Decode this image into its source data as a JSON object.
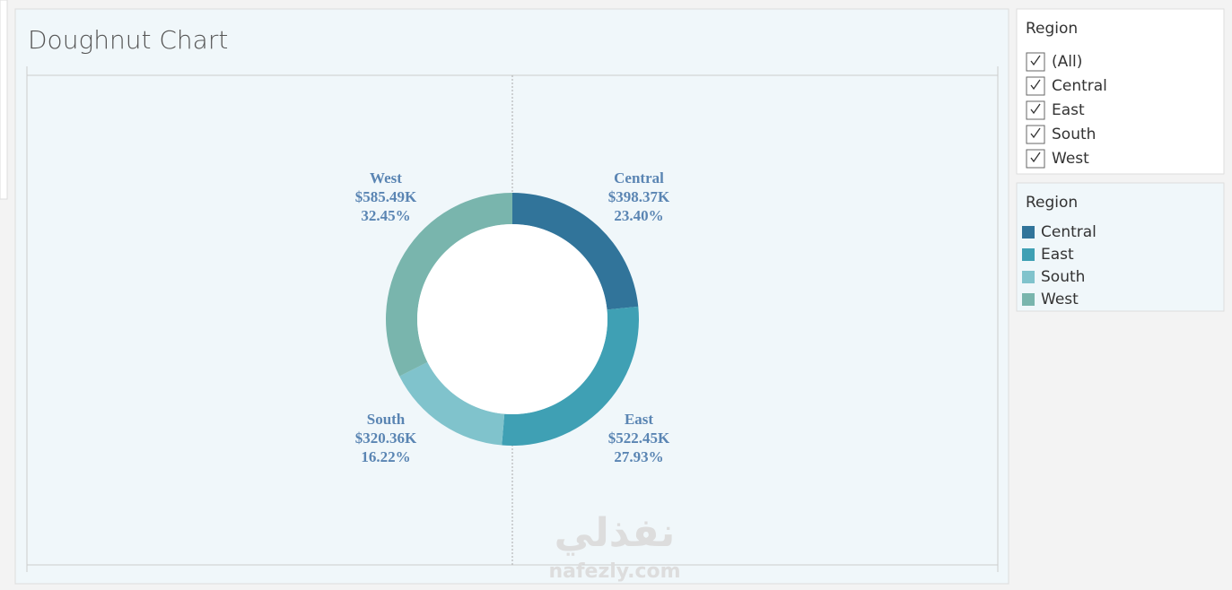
{
  "chart_data": {
    "type": "doughnut",
    "title": "Doughnut Chart",
    "categories": [
      "Central",
      "East",
      "South",
      "West"
    ],
    "values": [
      23.4,
      27.93,
      16.22,
      32.45
    ],
    "value_labels": [
      "23.40%",
      "27.93%",
      "16.22%",
      "32.45%"
    ],
    "sales": [
      398370,
      522450,
      320360,
      585490
    ],
    "sales_labels": [
      "$398.37K",
      "$522.45K",
      "$320.36K",
      "$585.49K"
    ],
    "colors": [
      "#31749a",
      "#3fa0b4",
      "#80c3cc",
      "#79b5ad"
    ]
  },
  "filter": {
    "title": "Region",
    "options": [
      "(All)",
      "Central",
      "East",
      "South",
      "West"
    ]
  },
  "legend": {
    "title": "Region"
  },
  "watermark": [
    "نفذلي",
    "nafezly.com"
  ]
}
